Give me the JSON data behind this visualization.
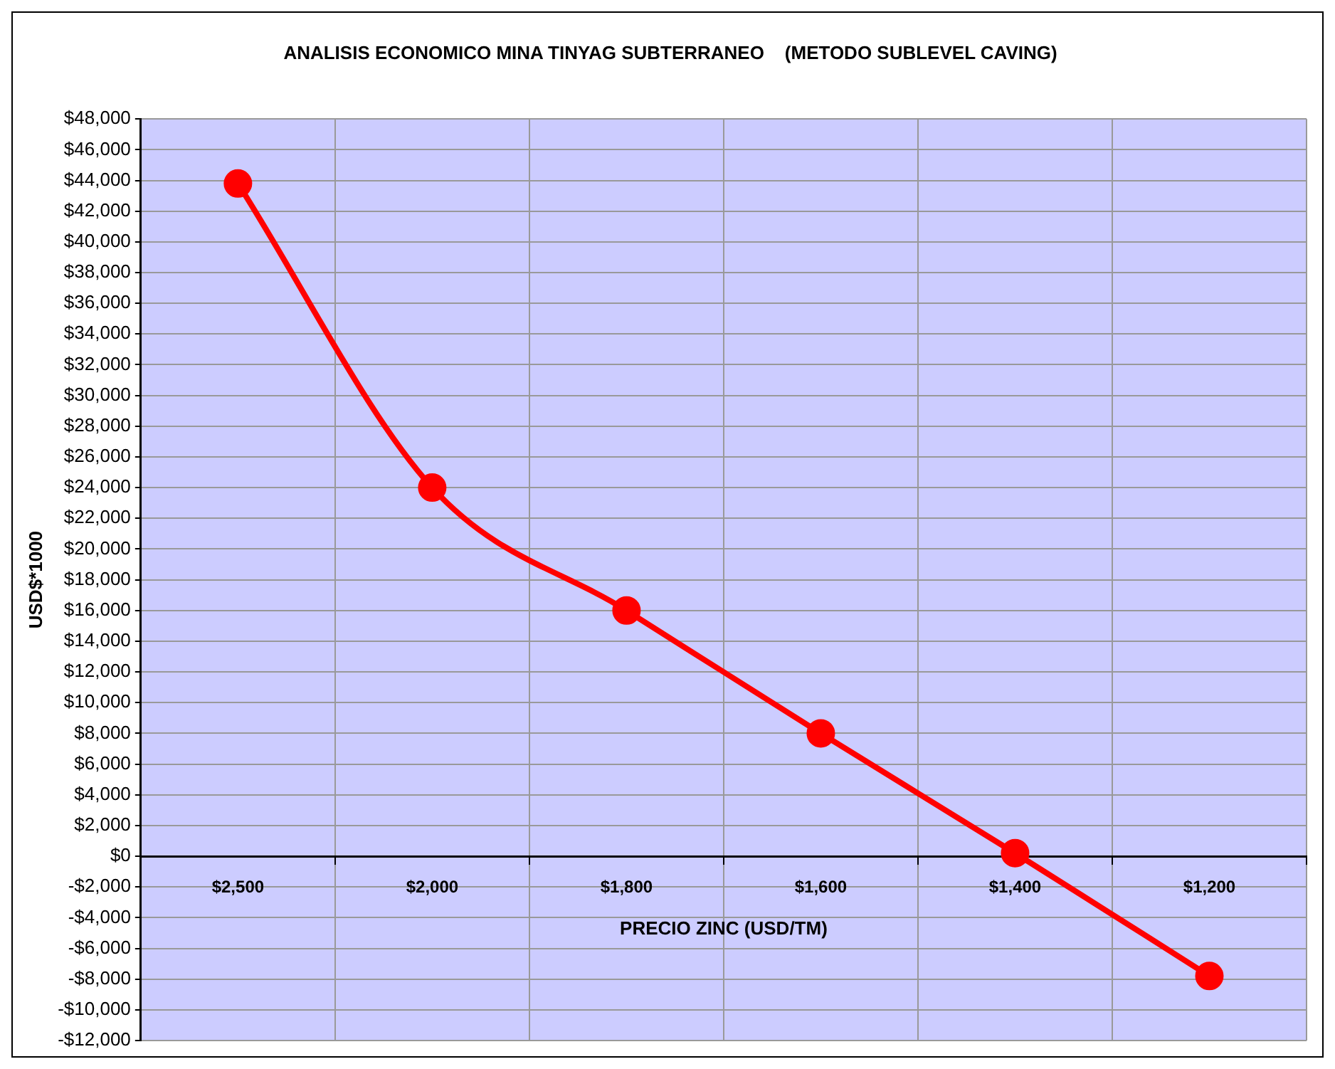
{
  "chart_data": {
    "type": "line",
    "title": "ANALISIS ECONOMICO MINA TINYAG SUBTERRANEO    (METODO SUBLEVEL CAVING)",
    "xlabel": "PRECIO ZINC (USD/TM)",
    "ylabel": "USD$*1000",
    "categories": [
      "$2,500",
      "$2,000",
      "$1,800",
      "$1,600",
      "$1,400",
      "$1,200"
    ],
    "series": [
      {
        "color": "#ff0000",
        "values": [
          43800,
          24000,
          16000,
          8000,
          200,
          -7800
        ]
      }
    ],
    "ylim": [
      -12000,
      48000
    ],
    "yticks": [
      {
        "value": -12000,
        "label": "-$12,000"
      },
      {
        "value": -10000,
        "label": "-$10,000"
      },
      {
        "value": -8000,
        "label": "-$8,000"
      },
      {
        "value": -6000,
        "label": "-$6,000"
      },
      {
        "value": -4000,
        "label": "-$4,000"
      },
      {
        "value": -2000,
        "label": "-$2,000"
      },
      {
        "value": 0,
        "label": "$0"
      },
      {
        "value": 2000,
        "label": "$2,000"
      },
      {
        "value": 4000,
        "label": "$4,000"
      },
      {
        "value": 6000,
        "label": "$6,000"
      },
      {
        "value": 8000,
        "label": "$8,000"
      },
      {
        "value": 10000,
        "label": "$10,000"
      },
      {
        "value": 12000,
        "label": "$12,000"
      },
      {
        "value": 14000,
        "label": "$14,000"
      },
      {
        "value": 16000,
        "label": "$16,000"
      },
      {
        "value": 18000,
        "label": "$18,000"
      },
      {
        "value": 20000,
        "label": "$20,000"
      },
      {
        "value": 22000,
        "label": "$22,000"
      },
      {
        "value": 24000,
        "label": "$24,000"
      },
      {
        "value": 26000,
        "label": "$26,000"
      },
      {
        "value": 28000,
        "label": "$28,000"
      },
      {
        "value": 30000,
        "label": "$30,000"
      },
      {
        "value": 32000,
        "label": "$32,000"
      },
      {
        "value": 34000,
        "label": "$34,000"
      },
      {
        "value": 36000,
        "label": "$36,000"
      },
      {
        "value": 38000,
        "label": "$38,000"
      },
      {
        "value": 40000,
        "label": "$40,000"
      },
      {
        "value": 42000,
        "label": "$42,000"
      },
      {
        "value": 44000,
        "label": "$44,000"
      },
      {
        "value": 46000,
        "label": "$46,000"
      },
      {
        "value": 48000,
        "label": "$48,000"
      }
    ],
    "grid": true,
    "marker": "circle",
    "line_style": "solid",
    "legend": false
  }
}
